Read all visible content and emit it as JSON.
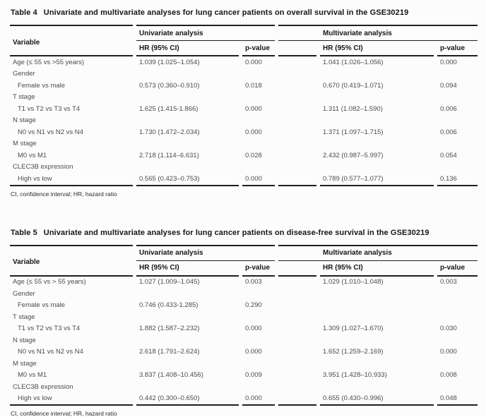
{
  "colors": {
    "background": "#fcfcfc",
    "rule": "#1f1f1f",
    "heading_text": "#161616",
    "body_text": "#4c4c4e"
  },
  "tables": [
    {
      "title_label": "Table 4",
      "title_text": "Univariate and multivariate analyses for lung cancer patients on overall survival in the GSE30219",
      "header": {
        "variable": "Variable",
        "univariate": "Univariate analysis",
        "multivariate": "Multivariate analysis",
        "hr_ci": "HR (95% CI)",
        "p_value": "p-value"
      },
      "rows": [
        {
          "variable": "Age (≤ 55 vs >55 years)",
          "indent": false,
          "u_hr": "1.039 (1.025–1.054)",
          "u_p": "0.000",
          "m_hr": "1.041 (1.026–1.056)",
          "m_p": "0.000"
        },
        {
          "variable": "Gender",
          "indent": false,
          "u_hr": "",
          "u_p": "",
          "m_hr": "",
          "m_p": ""
        },
        {
          "variable": "Female vs male",
          "indent": true,
          "u_hr": "0.573 (0.360–0.910)",
          "u_p": "0.018",
          "m_hr": "0.670 (0.419–1.071)",
          "m_p": "0.094"
        },
        {
          "variable": "T stage",
          "indent": false,
          "u_hr": "",
          "u_p": "",
          "m_hr": "",
          "m_p": ""
        },
        {
          "variable": "T1 vs T2 vs T3 vs T4",
          "indent": true,
          "u_hr": "1.625 (1.415-1.866)",
          "u_p": "0.000",
          "m_hr": "1.311 (1.082–1.590)",
          "m_p": "0.006"
        },
        {
          "variable": "N stage",
          "indent": false,
          "u_hr": "",
          "u_p": "",
          "m_hr": "",
          "m_p": ""
        },
        {
          "variable": "N0 vs N1 vs N2 vs N4",
          "indent": true,
          "u_hr": "1.730 (1.472–2.034)",
          "u_p": "0.000",
          "m_hr": "1.371 (1.097–1.715)",
          "m_p": "0.006"
        },
        {
          "variable": "M stage",
          "indent": false,
          "u_hr": "",
          "u_p": "",
          "m_hr": "",
          "m_p": ""
        },
        {
          "variable": "M0 vs M1",
          "indent": true,
          "u_hr": "2.718 (1.114–6.631)",
          "u_p": "0.028",
          "m_hr": "2.432 (0.987–5.997)",
          "m_p": "0.054"
        },
        {
          "variable": "CLEC3B expression",
          "indent": false,
          "u_hr": "",
          "u_p": "",
          "m_hr": "",
          "m_p": ""
        },
        {
          "variable": "High vs low",
          "indent": true,
          "u_hr": "0.565 (0.423–0.753)",
          "u_p": "0.000",
          "m_hr": "0.789 (0.577–1.077)",
          "m_p": "0.136"
        }
      ],
      "footnote": "CI, confidence interval; HR, hazard ratio"
    },
    {
      "title_label": "Table 5",
      "title_text": "Univariate and multivariate analyses for lung cancer patients on disease-free survival in the GSE30219",
      "header": {
        "variable": "Variable",
        "univariate": "Univariate analysis",
        "multivariate": "Multivariate analysis",
        "hr_ci": "HR (95% CI)",
        "p_value": "p-value"
      },
      "rows": [
        {
          "variable": "Age (≤ 55 vs > 55 years)",
          "indent": false,
          "u_hr": "1.027 (1.009–1.045)",
          "u_p": "0.003",
          "m_hr": "1.029 (1.010–1.048)",
          "m_p": "0.003"
        },
        {
          "variable": "Gender",
          "indent": false,
          "u_hr": "",
          "u_p": "",
          "m_hr": "",
          "m_p": ""
        },
        {
          "variable": "Female vs male",
          "indent": true,
          "u_hr": "0.746 (0.433-1.285)",
          "u_p": "0.290",
          "m_hr": "",
          "m_p": ""
        },
        {
          "variable": "T stage",
          "indent": false,
          "u_hr": "",
          "u_p": "",
          "m_hr": "",
          "m_p": ""
        },
        {
          "variable": "T1 vs T2 vs T3 vs T4",
          "indent": true,
          "u_hr": "1.882 (1.587–2.232)",
          "u_p": "0.000",
          "m_hr": "1.309 (1.027–1.670)",
          "m_p": "0.030"
        },
        {
          "variable": "N stage",
          "indent": false,
          "u_hr": "",
          "u_p": "",
          "m_hr": "",
          "m_p": ""
        },
        {
          "variable": "N0 vs N1 vs N2 vs N4",
          "indent": true,
          "u_hr": "2.618 (1.791–2.624)",
          "u_p": "0.000",
          "m_hr": "1.652 (1.259–2.169)",
          "m_p": "0.000"
        },
        {
          "variable": "M stage",
          "indent": false,
          "u_hr": "",
          "u_p": "",
          "m_hr": "",
          "m_p": ""
        },
        {
          "variable": "M0 vs M1",
          "indent": true,
          "u_hr": "3.837 (1.408–10.456)",
          "u_p": "0.009",
          "m_hr": "3.951 (1.428–10.933)",
          "m_p": "0.008"
        },
        {
          "variable": "CLEC3B expression",
          "indent": false,
          "u_hr": "",
          "u_p": "",
          "m_hr": "",
          "m_p": ""
        },
        {
          "variable": "High vs low",
          "indent": true,
          "u_hr": "0.442 (0.300–0.650)",
          "u_p": "0.000",
          "m_hr": "0.655 (0.430–0.996)",
          "m_p": "0.048"
        }
      ],
      "footnote": "CI, confidence interval; HR, hazard ratio"
    }
  ]
}
